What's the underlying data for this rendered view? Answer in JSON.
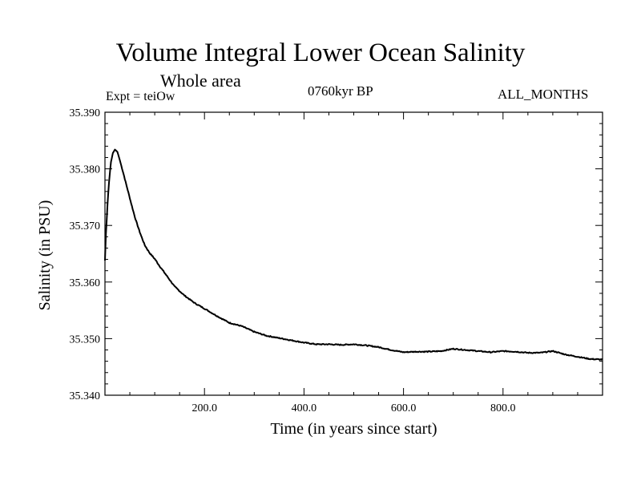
{
  "chart_data": {
    "type": "line",
    "title": "Volume Integral Lower Ocean Salinity",
    "subtitle": "Whole area",
    "annotations": {
      "experiment": "Expt = teiOw",
      "date": "0760kyr BP",
      "months": "ALL_MONTHS"
    },
    "xlabel": "Time (in years since start)",
    "ylabel": "Salinity (in PSU)",
    "xlim": [
      0,
      1000
    ],
    "ylim": [
      35.34,
      35.39
    ],
    "xticks": [
      200,
      400,
      600,
      800
    ],
    "xtick_labels": [
      "200.0",
      "400.0",
      "600.0",
      "800.0"
    ],
    "yticks": [
      35.34,
      35.35,
      35.36,
      35.37,
      35.38,
      35.39
    ],
    "ytick_labels": [
      "35.340",
      "35.350",
      "35.360",
      "35.370",
      "35.380",
      "35.390"
    ],
    "series": [
      {
        "name": "salinity",
        "color": "#000000",
        "x": [
          0,
          2,
          5,
          8,
          12,
          16,
          20,
          25,
          30,
          40,
          50,
          60,
          70,
          80,
          90,
          100,
          110,
          125,
          140,
          160,
          180,
          200,
          225,
          250,
          275,
          300,
          325,
          350,
          375,
          400,
          425,
          450,
          475,
          500,
          525,
          550,
          575,
          600,
          625,
          650,
          675,
          700,
          725,
          750,
          775,
          800,
          825,
          850,
          875,
          900,
          925,
          950,
          975,
          1000
        ],
        "y": [
          35.3638,
          35.3685,
          35.3735,
          35.3775,
          35.3812,
          35.3828,
          35.3834,
          35.383,
          35.3815,
          35.3782,
          35.3748,
          35.3715,
          35.3688,
          35.3665,
          35.3651,
          35.3641,
          35.3628,
          35.361,
          35.3592,
          35.3576,
          35.3563,
          35.3553,
          35.354,
          35.3528,
          35.3522,
          35.3512,
          35.3505,
          35.3501,
          35.3497,
          35.3493,
          35.349,
          35.349,
          35.3489,
          35.349,
          35.3488,
          35.3485,
          35.348,
          35.3476,
          35.3477,
          35.3477,
          35.3478,
          35.3482,
          35.348,
          35.3478,
          35.3476,
          35.3478,
          35.3477,
          35.3475,
          35.3475,
          35.3478,
          35.3472,
          35.3468,
          35.3464,
          35.3463
        ]
      }
    ]
  }
}
